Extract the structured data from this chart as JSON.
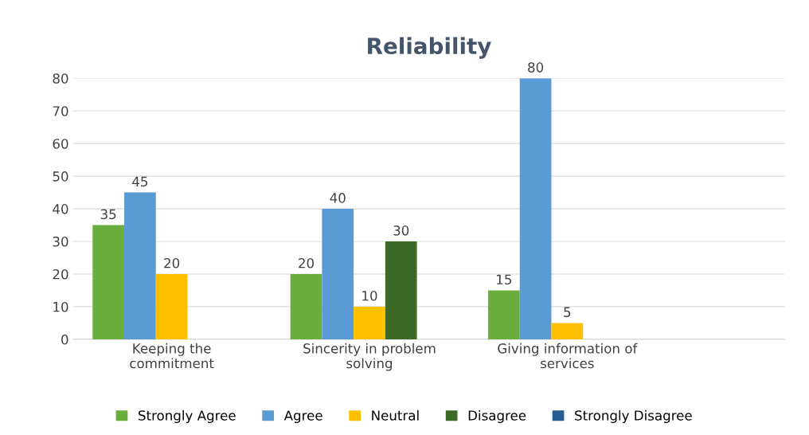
{
  "chart_data": {
    "type": "bar",
    "title": "Reliability",
    "categories": [
      "Keeping the\ncommitment",
      "Sincerity in problem\nsolving",
      "Giving information of\nservices"
    ],
    "series": [
      {
        "name": "Strongly Agree",
        "color": "#6aaf3d",
        "values": [
          35,
          20,
          15
        ]
      },
      {
        "name": "Agree",
        "color": "#5b9bd5",
        "values": [
          45,
          40,
          80
        ]
      },
      {
        "name": "Neutral",
        "color": "#ffc000",
        "values": [
          20,
          10,
          5
        ]
      },
      {
        "name": "Disagree",
        "color": "#3d6b27",
        "values": [
          null,
          30,
          null
        ]
      },
      {
        "name": "Strongly Disagree",
        "color": "#255e91",
        "values": [
          null,
          null,
          null
        ]
      }
    ],
    "ylim": [
      0,
      80
    ],
    "yticks": [
      0,
      10,
      20,
      30,
      40,
      50,
      60,
      70,
      80
    ],
    "grid": "y",
    "legend": "bottom",
    "data_labels": true
  }
}
